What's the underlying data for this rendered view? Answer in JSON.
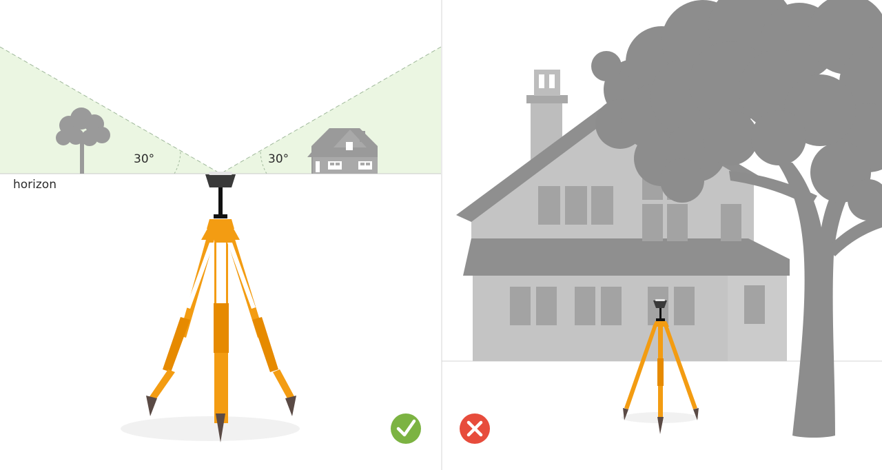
{
  "left_panel": {
    "horizon_label": "horizon",
    "angle_left_label": "30°",
    "angle_right_label": "30°",
    "status_icon": "check-icon"
  },
  "right_panel": {
    "status_icon": "cross-icon"
  },
  "colors": {
    "sky_zone": "#ebf6e2",
    "tripod_orange": "#f39c12",
    "tripod_orange_dark": "#e68a00",
    "check_green": "#7cb342",
    "cross_red": "#e74c3c",
    "silhouette_gray": "#8d8d8d",
    "house_gray": "#c4c4c4",
    "roof_gray": "#8f8f8f",
    "window_gray": "#a3a3a3",
    "foot_brown": "#5a4a45"
  }
}
